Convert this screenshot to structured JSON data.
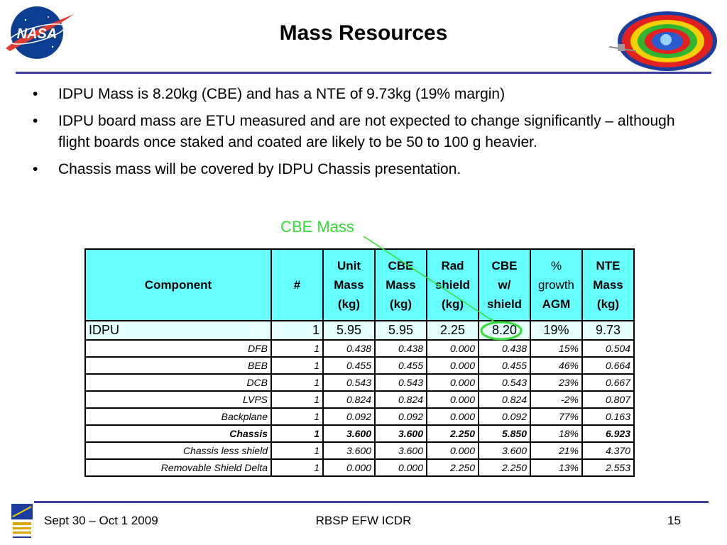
{
  "slide": {
    "title": "Mass Resources",
    "logos": [
      "nasa-meatball-logo",
      "radiation-belt-logo",
      "space-sciences-laboratory-logo"
    ]
  },
  "bullets": [
    "IDPU Mass is 8.20kg (CBE) and has a NTE of 9.73kg (19% margin)",
    "IDPU board mass are ETU measured and are not expected to change significantly – although flight boards once staked and coated are likely to be 50 to 100 g heavier.",
    "Chassis mass will be covered by IDPU Chassis presentation."
  ],
  "bullet_glyph": "•",
  "annotation": {
    "label": "CBE Mass",
    "color": "#33dd33"
  },
  "table": {
    "headers": {
      "component": "Component",
      "count": "#",
      "unit_mass": [
        "Unit",
        "Mass",
        "(kg)"
      ],
      "cbe_mass": [
        "CBE",
        "Mass",
        "(kg)"
      ],
      "rad_shield": [
        "Rad",
        "shield",
        "(kg)"
      ],
      "cbe_w_shield": [
        "CBE",
        "w/",
        "shield"
      ],
      "growth_agm": [
        "%",
        "growth",
        "AGM"
      ],
      "nte_mass": [
        "NTE",
        "Mass",
        "(kg)"
      ]
    },
    "rows": [
      {
        "component": "IDPU",
        "count": "1",
        "unit_mass": "5.95",
        "cbe_mass": "5.95",
        "rad_shield": "2.25",
        "cbe_w_shield": "8.20",
        "growth": "19%",
        "nte": "9.73"
      },
      {
        "component": "DFB",
        "count": "1",
        "unit_mass": "0.438",
        "cbe_mass": "0.438",
        "rad_shield": "0.000",
        "cbe_w_shield": "0.438",
        "growth": "15%",
        "nte": "0.504"
      },
      {
        "component": "BEB",
        "count": "1",
        "unit_mass": "0.455",
        "cbe_mass": "0.455",
        "rad_shield": "0.000",
        "cbe_w_shield": "0.455",
        "growth": "46%",
        "nte": "0.664"
      },
      {
        "component": "DCB",
        "count": "1",
        "unit_mass": "0.543",
        "cbe_mass": "0.543",
        "rad_shield": "0.000",
        "cbe_w_shield": "0.543",
        "growth": "23%",
        "nte": "0.667"
      },
      {
        "component": "LVPS",
        "count": "1",
        "unit_mass": "0.824",
        "cbe_mass": "0.824",
        "rad_shield": "0.000",
        "cbe_w_shield": "0.824",
        "growth": "-2%",
        "nte": "0.807"
      },
      {
        "component": "Backplane",
        "count": "1",
        "unit_mass": "0.092",
        "cbe_mass": "0.092",
        "rad_shield": "0.000",
        "cbe_w_shield": "0.092",
        "growth": "77%",
        "nte": "0.163"
      },
      {
        "component": "Chassis",
        "count": "1",
        "unit_mass": "3.600",
        "cbe_mass": "3.600",
        "rad_shield": "2.250",
        "cbe_w_shield": "5.850",
        "growth": "18%",
        "nte": "6.923"
      },
      {
        "component": "Chassis less shield",
        "count": "1",
        "unit_mass": "3.600",
        "cbe_mass": "3.600",
        "rad_shield": "0.000",
        "cbe_w_shield": "3.600",
        "growth": "21%",
        "nte": "4.370"
      },
      {
        "component": "Removable Shield Delta",
        "count": "1",
        "unit_mass": "0.000",
        "cbe_mass": "0.000",
        "rad_shield": "2.250",
        "cbe_w_shield": "2.250",
        "growth": "13%",
        "nte": "2.553"
      }
    ],
    "colors": {
      "header_bg": "#66ffff",
      "idpu_row_bg": "#e6ffff"
    }
  },
  "footer": {
    "date": "Sept 30 – Oct 1 2009",
    "event": "RBSP EFW ICDR",
    "page": "15"
  }
}
